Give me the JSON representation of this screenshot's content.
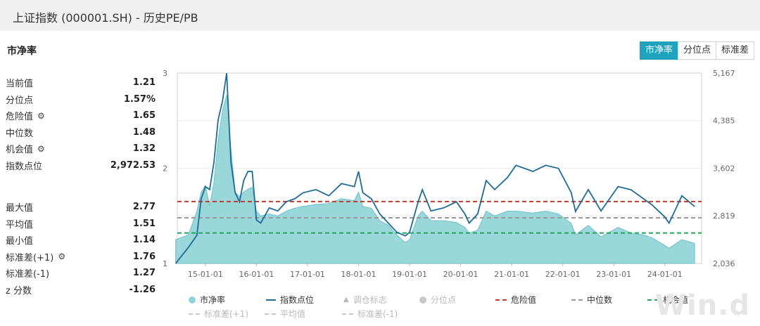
{
  "window": {
    "title": "上证指数 (000001.SH) - 历史PE/PB"
  },
  "section_title": "市净率",
  "tabs": [
    {
      "label": "市净率",
      "active": true
    },
    {
      "label": "分位点",
      "active": false
    },
    {
      "label": "标准差",
      "active": false
    }
  ],
  "stats_top": [
    {
      "label": "当前值",
      "value": "1.21",
      "icon": ""
    },
    {
      "label": "分位点",
      "value": "1.57%",
      "icon": ""
    },
    {
      "label": "危险值",
      "value": "1.65",
      "icon": "gear-icon"
    },
    {
      "label": "中位数",
      "value": "1.48",
      "icon": ""
    },
    {
      "label": "机会值",
      "value": "1.32",
      "icon": "gear-icon"
    },
    {
      "label": "指数点位",
      "value": "2,972.53",
      "icon": ""
    }
  ],
  "stats_bottom": [
    {
      "label": "最大值",
      "value": "2.77",
      "icon": ""
    },
    {
      "label": "平均值",
      "value": "1.51",
      "icon": ""
    },
    {
      "label": "最小值",
      "value": "1.14",
      "icon": ""
    },
    {
      "label": "标准差(+1)",
      "value": "1.76",
      "icon": "gear-icon"
    },
    {
      "label": "标准差(-1)",
      "value": "1.27",
      "icon": ""
    },
    {
      "label": "z 分数",
      "value": "-1.26",
      "icon": ""
    }
  ],
  "watermark": "Win.d",
  "colors": {
    "area": "#8fd3d8",
    "area_edge": "#5bbcc4",
    "index_line": "#1f6a96",
    "danger": "#c0392b",
    "median": "#999999",
    "opportunity": "#27a35a",
    "accent": "#20a3bf"
  },
  "chart_data": {
    "type": "area",
    "x_ticks": [
      "15-01-01",
      "16-01-01",
      "17-01-01",
      "18-01-01",
      "19-01-01",
      "20-01-01",
      "21-01-01",
      "22-01-01",
      "23-01-01",
      "24-01-01"
    ],
    "left_axis": {
      "ticks": [
        "1",
        "2",
        "3"
      ],
      "range": [
        1,
        3
      ]
    },
    "right_axis": {
      "ticks": [
        "2,036",
        "2,819",
        "3,602",
        "4,385",
        "5,167"
      ],
      "range": [
        2036,
        5167
      ]
    },
    "reference_lines": {
      "danger": 1.65,
      "median": 1.48,
      "opportunity": 1.32
    },
    "series": [
      {
        "name": "市净率",
        "axis": "left",
        "points": [
          [
            "2014-06",
            1.25
          ],
          [
            "2014-09",
            1.3
          ],
          [
            "2014-11",
            1.55
          ],
          [
            "2014-12",
            1.75
          ],
          [
            "2015-01",
            1.82
          ],
          [
            "2015-02",
            1.6
          ],
          [
            "2015-03",
            1.85
          ],
          [
            "2015-04",
            2.3
          ],
          [
            "2015-05",
            2.6
          ],
          [
            "2015-06",
            2.77
          ],
          [
            "2015-07",
            2.2
          ],
          [
            "2015-08",
            1.75
          ],
          [
            "2015-09",
            1.7
          ],
          [
            "2015-10",
            1.75
          ],
          [
            "2015-11",
            1.78
          ],
          [
            "2015-12",
            1.8
          ],
          [
            "2016-01",
            1.55
          ],
          [
            "2016-02",
            1.5
          ],
          [
            "2016-04",
            1.52
          ],
          [
            "2016-06",
            1.5
          ],
          [
            "2016-08",
            1.55
          ],
          [
            "2016-10",
            1.58
          ],
          [
            "2016-12",
            1.6
          ],
          [
            "2017-03",
            1.62
          ],
          [
            "2017-06",
            1.63
          ],
          [
            "2017-09",
            1.68
          ],
          [
            "2017-12",
            1.66
          ],
          [
            "2018-01",
            1.75
          ],
          [
            "2018-02",
            1.6
          ],
          [
            "2018-04",
            1.58
          ],
          [
            "2018-06",
            1.45
          ],
          [
            "2018-08",
            1.4
          ],
          [
            "2018-10",
            1.3
          ],
          [
            "2018-12",
            1.22
          ],
          [
            "2019-01",
            1.25
          ],
          [
            "2019-03",
            1.5
          ],
          [
            "2019-04",
            1.55
          ],
          [
            "2019-06",
            1.45
          ],
          [
            "2019-09",
            1.45
          ],
          [
            "2019-12",
            1.43
          ],
          [
            "2020-02",
            1.38
          ],
          [
            "2020-03",
            1.32
          ],
          [
            "2020-05",
            1.35
          ],
          [
            "2020-07",
            1.55
          ],
          [
            "2020-09",
            1.5
          ],
          [
            "2020-12",
            1.55
          ],
          [
            "2021-02",
            1.55
          ],
          [
            "2021-06",
            1.53
          ],
          [
            "2021-09",
            1.55
          ],
          [
            "2021-12",
            1.52
          ],
          [
            "2022-03",
            1.42
          ],
          [
            "2022-04",
            1.3
          ],
          [
            "2022-07",
            1.4
          ],
          [
            "2022-10",
            1.28
          ],
          [
            "2022-12",
            1.33
          ],
          [
            "2023-02",
            1.38
          ],
          [
            "2023-05",
            1.32
          ],
          [
            "2023-08",
            1.3
          ],
          [
            "2023-10",
            1.27
          ],
          [
            "2024-01",
            1.19
          ],
          [
            "2024-02",
            1.16
          ],
          [
            "2024-05",
            1.25
          ],
          [
            "2024-08",
            1.21
          ]
        ]
      },
      {
        "name": "指数点位",
        "axis": "right",
        "points": [
          [
            "2014-06",
            2036
          ],
          [
            "2014-09",
            2300
          ],
          [
            "2014-11",
            2500
          ],
          [
            "2014-12",
            3100
          ],
          [
            "2015-01",
            3300
          ],
          [
            "2015-02",
            3250
          ],
          [
            "2015-03",
            3700
          ],
          [
            "2015-04",
            4400
          ],
          [
            "2015-05",
            4700
          ],
          [
            "2015-06",
            5167
          ],
          [
            "2015-07",
            3700
          ],
          [
            "2015-08",
            3200
          ],
          [
            "2015-09",
            3050
          ],
          [
            "2015-10",
            3400
          ],
          [
            "2015-11",
            3550
          ],
          [
            "2015-12",
            3550
          ],
          [
            "2016-01",
            2750
          ],
          [
            "2016-02",
            2700
          ],
          [
            "2016-04",
            2950
          ],
          [
            "2016-06",
            2900
          ],
          [
            "2016-08",
            3050
          ],
          [
            "2016-10",
            3100
          ],
          [
            "2016-12",
            3200
          ],
          [
            "2017-03",
            3250
          ],
          [
            "2017-06",
            3150
          ],
          [
            "2017-09",
            3350
          ],
          [
            "2017-12",
            3300
          ],
          [
            "2018-01",
            3550
          ],
          [
            "2018-02",
            3200
          ],
          [
            "2018-04",
            3100
          ],
          [
            "2018-06",
            2850
          ],
          [
            "2018-08",
            2700
          ],
          [
            "2018-10",
            2550
          ],
          [
            "2018-12",
            2490
          ],
          [
            "2019-01",
            2550
          ],
          [
            "2019-03",
            3050
          ],
          [
            "2019-04",
            3250
          ],
          [
            "2019-06",
            2900
          ],
          [
            "2019-09",
            2950
          ],
          [
            "2019-12",
            3050
          ],
          [
            "2020-02",
            2850
          ],
          [
            "2020-03",
            2700
          ],
          [
            "2020-05",
            2850
          ],
          [
            "2020-07",
            3400
          ],
          [
            "2020-09",
            3250
          ],
          [
            "2020-12",
            3450
          ],
          [
            "2021-02",
            3650
          ],
          [
            "2021-06",
            3550
          ],
          [
            "2021-09",
            3650
          ],
          [
            "2021-12",
            3600
          ],
          [
            "2022-03",
            3200
          ],
          [
            "2022-04",
            2890
          ],
          [
            "2022-07",
            3250
          ],
          [
            "2022-10",
            2900
          ],
          [
            "2022-12",
            3100
          ],
          [
            "2023-02",
            3300
          ],
          [
            "2023-05",
            3250
          ],
          [
            "2023-08",
            3100
          ],
          [
            "2023-10",
            3000
          ],
          [
            "2024-01",
            2800
          ],
          [
            "2024-02",
            2700
          ],
          [
            "2024-05",
            3150
          ],
          [
            "2024-08",
            2972.53
          ]
        ]
      }
    ],
    "legend": [
      {
        "name": "市净率",
        "style": "circle",
        "muted": false
      },
      {
        "name": "指数点位",
        "style": "line",
        "muted": false
      },
      {
        "name": "调仓标志",
        "style": "triangle",
        "muted": true
      },
      {
        "name": "分位点",
        "style": "circle",
        "muted": true
      },
      {
        "name": "危险值",
        "style": "dash-red",
        "muted": false
      },
      {
        "name": "中位数",
        "style": "dash-gray",
        "muted": false
      },
      {
        "name": "机会值",
        "style": "dash-green",
        "muted": false
      },
      {
        "name": "标准差(+1)",
        "style": "dash-gray",
        "muted": true
      },
      {
        "name": "平均值",
        "style": "dash-gray",
        "muted": true
      },
      {
        "name": "标准差(-1)",
        "style": "dash-gray",
        "muted": true
      }
    ]
  }
}
